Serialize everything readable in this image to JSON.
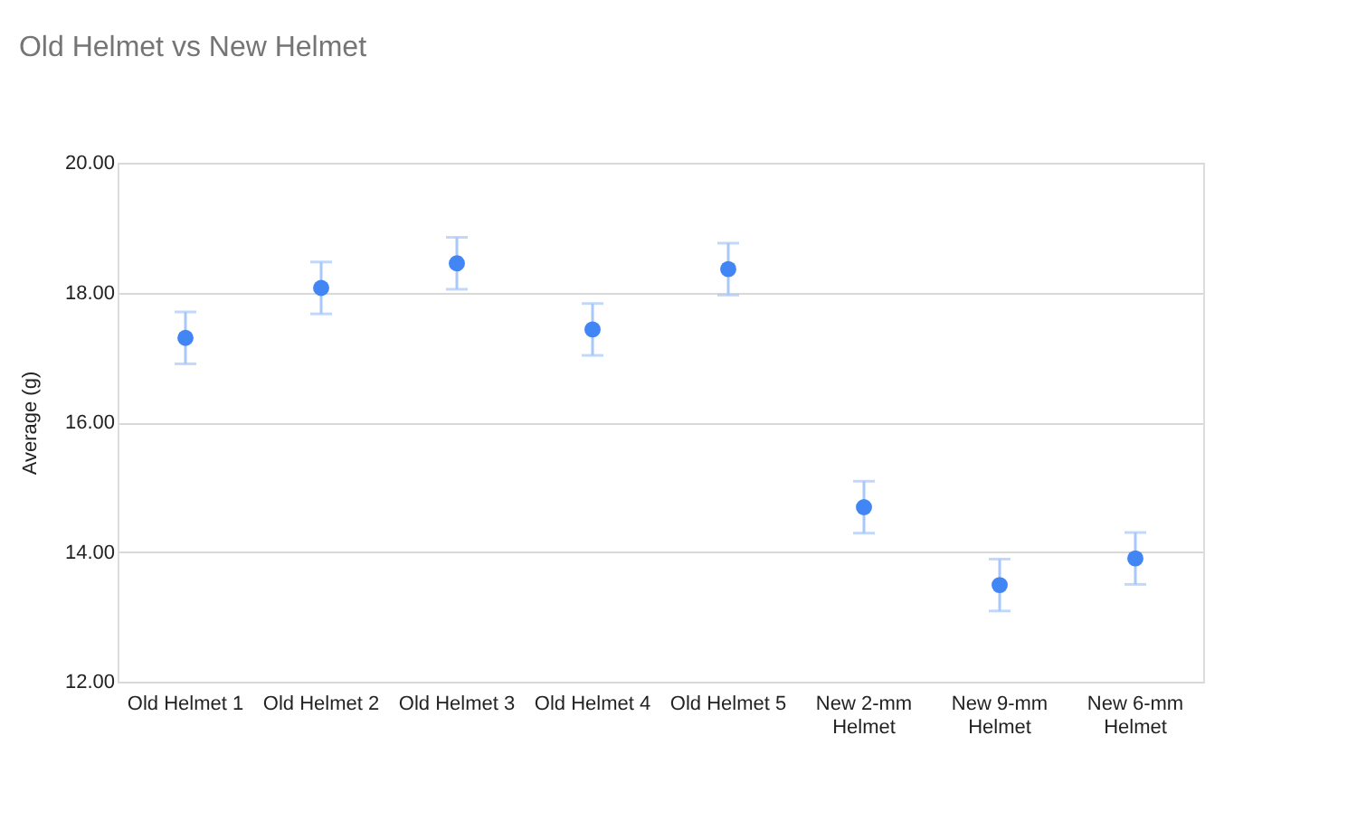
{
  "chart_data": {
    "type": "scatter",
    "title": "Old Helmet vs New Helmet",
    "ylabel": "Average (g)",
    "categories": [
      "Old Helmet 1",
      "Old Helmet 2",
      "Old Helmet 3",
      "Old Helmet 4",
      "Old Helmet 5",
      "New 2-mm Helmet",
      "New 9-mm Helmet",
      "New 6-mm Helmet"
    ],
    "series": [
      {
        "color": "#4285f4",
        "values": [
          17.3,
          18.07,
          18.45,
          17.43,
          18.36,
          14.69,
          13.49,
          13.9
        ],
        "errors": [
          0.4,
          0.4,
          0.4,
          0.4,
          0.4,
          0.4,
          0.4,
          0.4
        ]
      }
    ],
    "ylim": [
      12,
      20
    ],
    "yticks": [
      {
        "value": 12,
        "label": "12.00"
      },
      {
        "value": 14,
        "label": "14.00"
      },
      {
        "value": 16,
        "label": "16.00"
      },
      {
        "value": 18,
        "label": "18.00"
      },
      {
        "value": 20,
        "label": "20.00"
      }
    ],
    "grid": "y",
    "marker": "circle"
  }
}
